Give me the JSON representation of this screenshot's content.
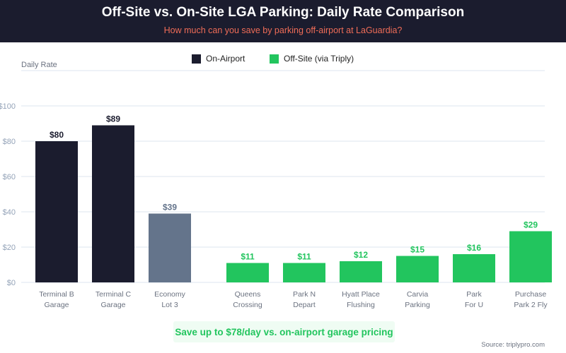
{
  "header": {
    "title": "Off-Site vs. On-Site LGA Parking: Daily Rate Comparison",
    "subtitle": "How much can you save by parking off-airport at LaGuardia?"
  },
  "legend": [
    {
      "label": "On-Airport",
      "color": "#1b1c2e"
    },
    {
      "label": "Off-Site (via Triply)",
      "color": "#22c55e"
    }
  ],
  "callout": "Save up to $78/day vs. on-airport garage pricing",
  "source": "Source: triplypro.com",
  "colors": {
    "on_airport": "#1b1c2e",
    "economy": "#64748b",
    "off_site": "#22c55e",
    "grid": "#eef2f7",
    "axis_text": "#94a3b8",
    "category_text": "#6b7280"
  },
  "chart_data": {
    "type": "bar",
    "title": "Off-Site vs. On-Site LGA Parking: Daily Rate Comparison",
    "subtitle": "How much can you save by parking off-airport at LaGuardia?",
    "xlabel": "",
    "ylabel": "Daily Rate",
    "ylim": [
      0,
      120
    ],
    "yticks": [
      0,
      20,
      40,
      60,
      80,
      100
    ],
    "ytick_labels": [
      "$0",
      "$20",
      "$40",
      "$60",
      "$80",
      "$100"
    ],
    "grid": true,
    "legend_position": "top-center",
    "categories": [
      [
        "Terminal B",
        "Garage"
      ],
      [
        "Terminal C",
        "Garage"
      ],
      [
        "Economy",
        "Lot 3"
      ],
      [
        "Queens",
        "Crossing"
      ],
      [
        "Park N",
        "Depart"
      ],
      [
        "Hyatt Place",
        "Flushing"
      ],
      [
        "Carvia",
        "Parking"
      ],
      [
        "Park",
        "For U"
      ],
      [
        "Purchase",
        "Park 2 Fly"
      ]
    ],
    "values": [
      80,
      89,
      39,
      11,
      11,
      12,
      15,
      16,
      29
    ],
    "value_labels": [
      "$80",
      "$89",
      "$39",
      "$11",
      "$11",
      "$12",
      "$15",
      "$16",
      "$29"
    ],
    "groups": [
      "on_airport",
      "on_airport",
      "economy",
      "off_site",
      "off_site",
      "off_site",
      "off_site",
      "off_site",
      "off_site"
    ]
  }
}
